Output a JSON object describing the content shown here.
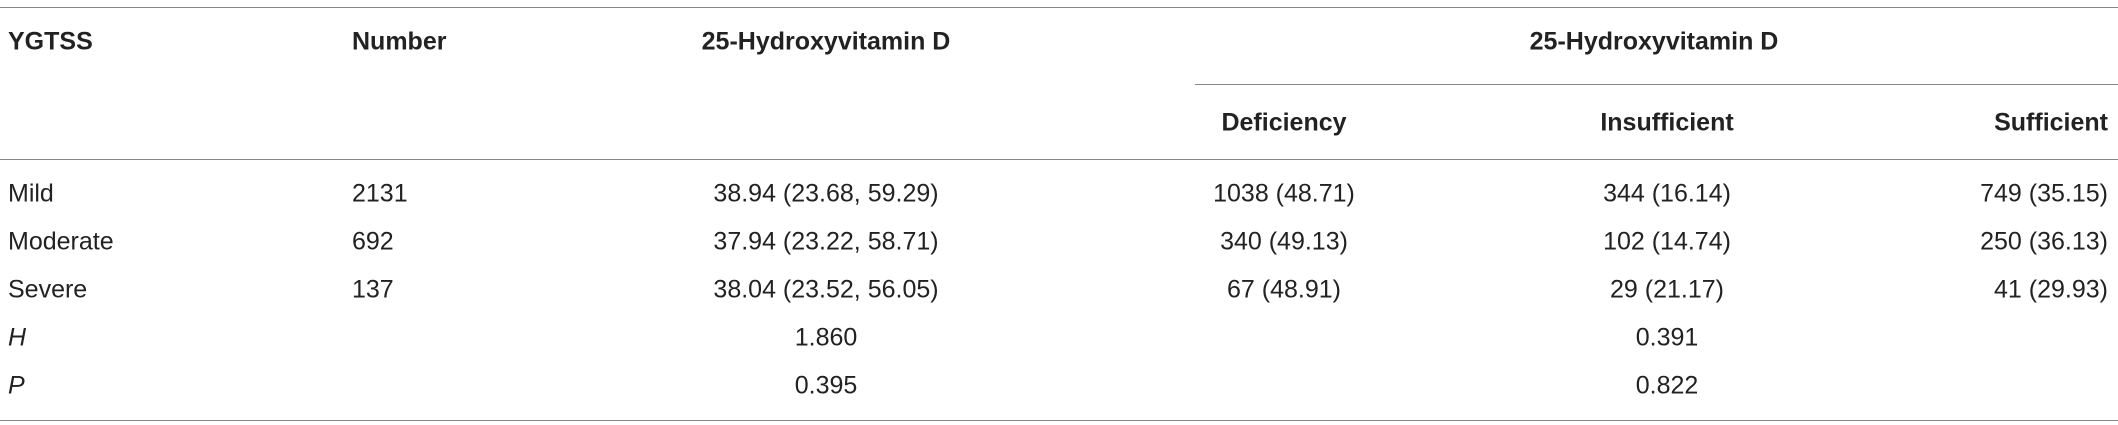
{
  "table": {
    "header": {
      "ygtss": "YGTSS",
      "number": "Number",
      "vitamin_d": "25-Hydroxyvitamin D",
      "group": "25-Hydroxyvitamin D",
      "subcolumns": [
        "Deficiency",
        "Insufficient",
        "Sufficient"
      ]
    },
    "rows": [
      [
        "Mild",
        "2131",
        "38.94 (23.68, 59.29)",
        "1038 (48.71)",
        "344 (16.14)",
        "749 (35.15)"
      ],
      [
        "Moderate",
        "692",
        "37.94 (23.22, 58.71)",
        "340 (49.13)",
        "102 (14.74)",
        "250 (36.13)"
      ],
      [
        "Severe",
        "137",
        "38.04 (23.52, 56.05)",
        "67 (48.91)",
        "29 (21.17)",
        "41 (29.93)"
      ]
    ],
    "stats": [
      {
        "label": "H",
        "vitamin_d": "1.860",
        "group": "0.391"
      },
      {
        "label": "P",
        "vitamin_d": "0.395",
        "group": "0.822"
      }
    ]
  }
}
